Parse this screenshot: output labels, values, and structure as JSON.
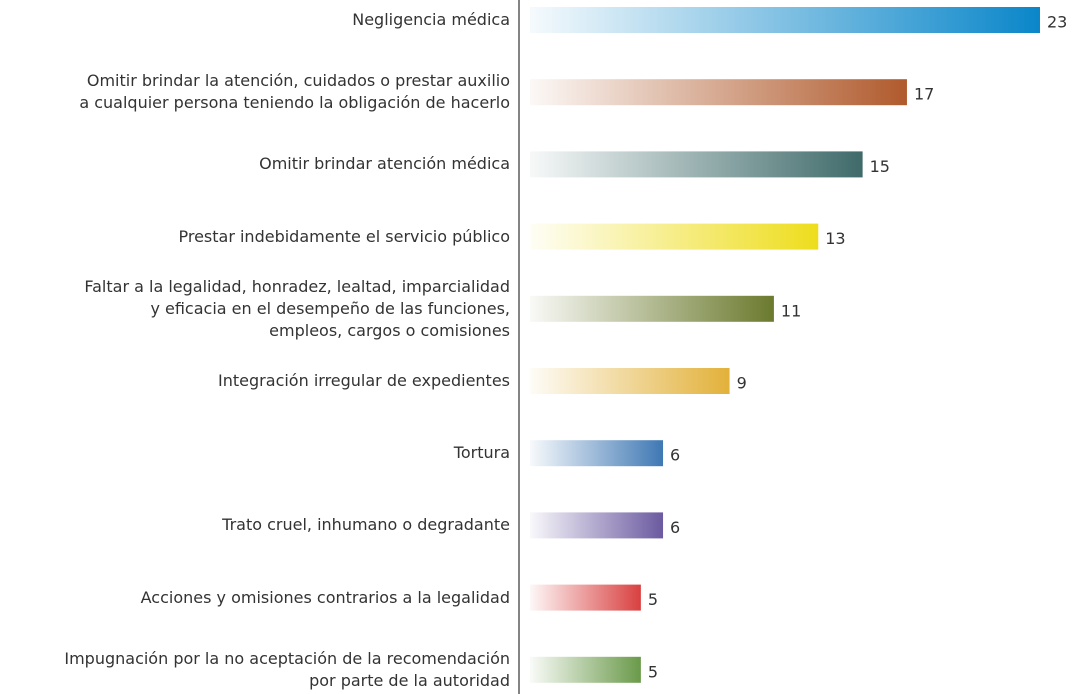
{
  "chart_data": {
    "type": "bar",
    "orientation": "horizontal",
    "categories": [
      "Negligencia médica",
      "Omitir brindar la atención, cuidados o prestar auxilio\na cualquier persona teniendo la obligación de hacerlo",
      "Omitir brindar atención médica",
      "Prestar indebidamente el servicio público",
      "Faltar a la legalidad, honradez, lealtad, imparcialidad\ny eficacia en el desempeño  de las funciones,\nempleos, cargos o comisiones",
      "Integración irregular de expedientes",
      "Tortura",
      "Trato cruel, inhumano o degradante",
      "Acciones y omisiones contrarios a la legalidad",
      "Impugnación por la no aceptación de la recomendación\npor parte de la autoridad"
    ],
    "values": [
      23,
      17,
      15,
      13,
      11,
      9,
      6,
      6,
      5,
      5
    ],
    "colors": [
      "#0a86c9",
      "#b05a2c",
      "#3f6a6a",
      "#eedd1c",
      "#6b7a2e",
      "#e2b13a",
      "#3f78b4",
      "#6b5aa0",
      "#d94040",
      "#6a9a4a"
    ],
    "xlim": [
      0,
      23
    ]
  }
}
